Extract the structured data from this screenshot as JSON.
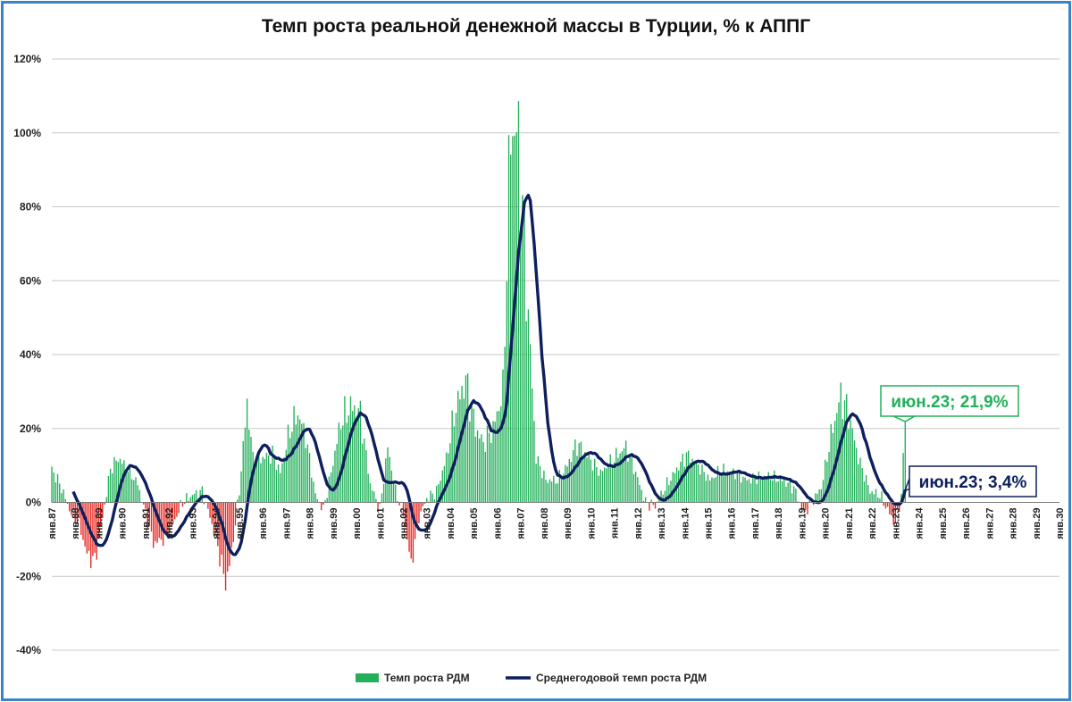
{
  "chart_data": {
    "type": "bar+line",
    "title": "Темп роста реальной денежной массы в Турции, % к АППГ",
    "ylim": [
      -40,
      120
    ],
    "y_ticks": [
      -40,
      -20,
      0,
      20,
      40,
      60,
      80,
      100,
      120
    ],
    "y_tick_labels": [
      "-40%",
      "-20%",
      "0%",
      "20%",
      "40%",
      "60%",
      "80%",
      "100%",
      "120%"
    ],
    "x_range": [
      "1987-01",
      "2030-01"
    ],
    "x_tick_labels": [
      "янв.87",
      "янв.88",
      "янв.89",
      "янв.90",
      "янв.91",
      "янв.92",
      "янв.93",
      "янв.94",
      "янв.95",
      "янв.96",
      "янв.97",
      "янв.98",
      "янв.99",
      "янв.00",
      "янв.01",
      "янв.02",
      "янв.03",
      "янв.04",
      "янв.05",
      "янв.06",
      "янв.07",
      "янв.08",
      "янв.09",
      "янв.10",
      "янв.11",
      "янв.12",
      "янв.13",
      "янв.14",
      "янв.15",
      "янв.16",
      "янв.17",
      "янв.18",
      "янв.19",
      "янв.20",
      "янв.21",
      "янв.22",
      "янв.23",
      "янв.24",
      "янв.25",
      "янв.26",
      "янв.27",
      "янв.28",
      "янв.29",
      "янв.30"
    ],
    "grid": true,
    "legend_position": "bottom",
    "series": [
      {
        "name": "Темп роста РДМ",
        "kind": "bar",
        "color_positive": "#22b05a",
        "color_negative": "#e8251f",
        "frequency": "monthly",
        "envelope_points": [
          [
            "1987-01",
            9
          ],
          [
            "1987-06",
            4
          ],
          [
            "1987-10",
            -2
          ],
          [
            "1988-03",
            -6
          ],
          [
            "1988-07",
            -14
          ],
          [
            "1988-11",
            -16
          ],
          [
            "1989-03",
            -4
          ],
          [
            "1989-07",
            9
          ],
          [
            "1989-11",
            12
          ],
          [
            "1990-04",
            9
          ],
          [
            "1990-09",
            5
          ],
          [
            "1991-01",
            -3
          ],
          [
            "1991-05",
            -11
          ],
          [
            "1991-10",
            -10
          ],
          [
            "1992-02",
            -7
          ],
          [
            "1992-08",
            0
          ],
          [
            "1993-01",
            2
          ],
          [
            "1993-06",
            3
          ],
          [
            "1993-10",
            -4
          ],
          [
            "1994-02",
            -12
          ],
          [
            "1994-06",
            -22
          ],
          [
            "1994-09",
            -14
          ],
          [
            "1995-01",
            3
          ],
          [
            "1995-05",
            27
          ],
          [
            "1995-08",
            12
          ],
          [
            "1996-01",
            12
          ],
          [
            "1996-06",
            13
          ],
          [
            "1996-10",
            8
          ],
          [
            "1997-03",
            20
          ],
          [
            "1997-07",
            24
          ],
          [
            "1997-11",
            18
          ],
          [
            "1998-04",
            2
          ],
          [
            "1998-08",
            -2
          ],
          [
            "1998-12",
            8
          ],
          [
            "1999-05",
            22
          ],
          [
            "1999-10",
            26
          ],
          [
            "2000-03",
            24
          ],
          [
            "2000-08",
            5
          ],
          [
            "2001-01",
            -2
          ],
          [
            "2001-05",
            15
          ],
          [
            "2001-09",
            3
          ],
          [
            "2002-01",
            -3
          ],
          [
            "2002-05",
            -17
          ],
          [
            "2002-09",
            -4
          ],
          [
            "2003-01",
            1
          ],
          [
            "2003-06",
            3
          ],
          [
            "2003-11",
            12
          ],
          [
            "2004-04",
            26
          ],
          [
            "2004-09",
            33
          ],
          [
            "2005-02",
            20
          ],
          [
            "2005-06",
            16
          ],
          [
            "2005-11",
            20
          ],
          [
            "2006-04",
            30
          ],
          [
            "2006-08",
            102
          ],
          [
            "2006-12",
            98
          ],
          [
            "2007-04",
            60
          ],
          [
            "2007-09",
            12
          ],
          [
            "2008-02",
            6
          ],
          [
            "2008-08",
            6
          ],
          [
            "2009-01",
            10
          ],
          [
            "2009-06",
            16
          ],
          [
            "2009-12",
            12
          ],
          [
            "2010-06",
            8
          ],
          [
            "2011-01",
            12
          ],
          [
            "2011-07",
            15
          ],
          [
            "2011-12",
            8
          ],
          [
            "2012-05",
            0
          ],
          [
            "2012-10",
            -1
          ],
          [
            "2013-03",
            4
          ],
          [
            "2013-09",
            9
          ],
          [
            "2014-02",
            13
          ],
          [
            "2014-08",
            10
          ],
          [
            "2015-02",
            6
          ],
          [
            "2015-08",
            9
          ],
          [
            "2016-03",
            8
          ],
          [
            "2016-09",
            6
          ],
          [
            "2017-03",
            7
          ],
          [
            "2017-09",
            7
          ],
          [
            "2018-03",
            6
          ],
          [
            "2018-09",
            4
          ],
          [
            "2019-02",
            -3
          ],
          [
            "2019-06",
            0
          ],
          [
            "2019-11",
            4
          ],
          [
            "2020-04",
            18
          ],
          [
            "2020-09",
            29
          ],
          [
            "2021-01",
            24
          ],
          [
            "2021-06",
            12
          ],
          [
            "2021-12",
            3
          ],
          [
            "2022-05",
            2
          ],
          [
            "2022-09",
            -2
          ],
          [
            "2023-01",
            -6
          ],
          [
            "2023-04",
            2
          ],
          [
            "2023-06",
            21.9
          ]
        ]
      },
      {
        "name": "Среднегодовой темп роста РДМ",
        "kind": "line",
        "color": "#0d1f5c",
        "window_months": 12,
        "start": "1987-12"
      }
    ],
    "annotations": [
      {
        "label": "июн.23; 21,9%",
        "series": "Темп роста РДМ",
        "date": "2023-06",
        "value": 21.9,
        "color": "#22b05a"
      },
      {
        "label": "июн.23; 3,4%",
        "series": "Среднегодовой темп роста РДМ",
        "date": "2023-06",
        "value": 3.4,
        "color": "#0d1f5c"
      }
    ]
  }
}
